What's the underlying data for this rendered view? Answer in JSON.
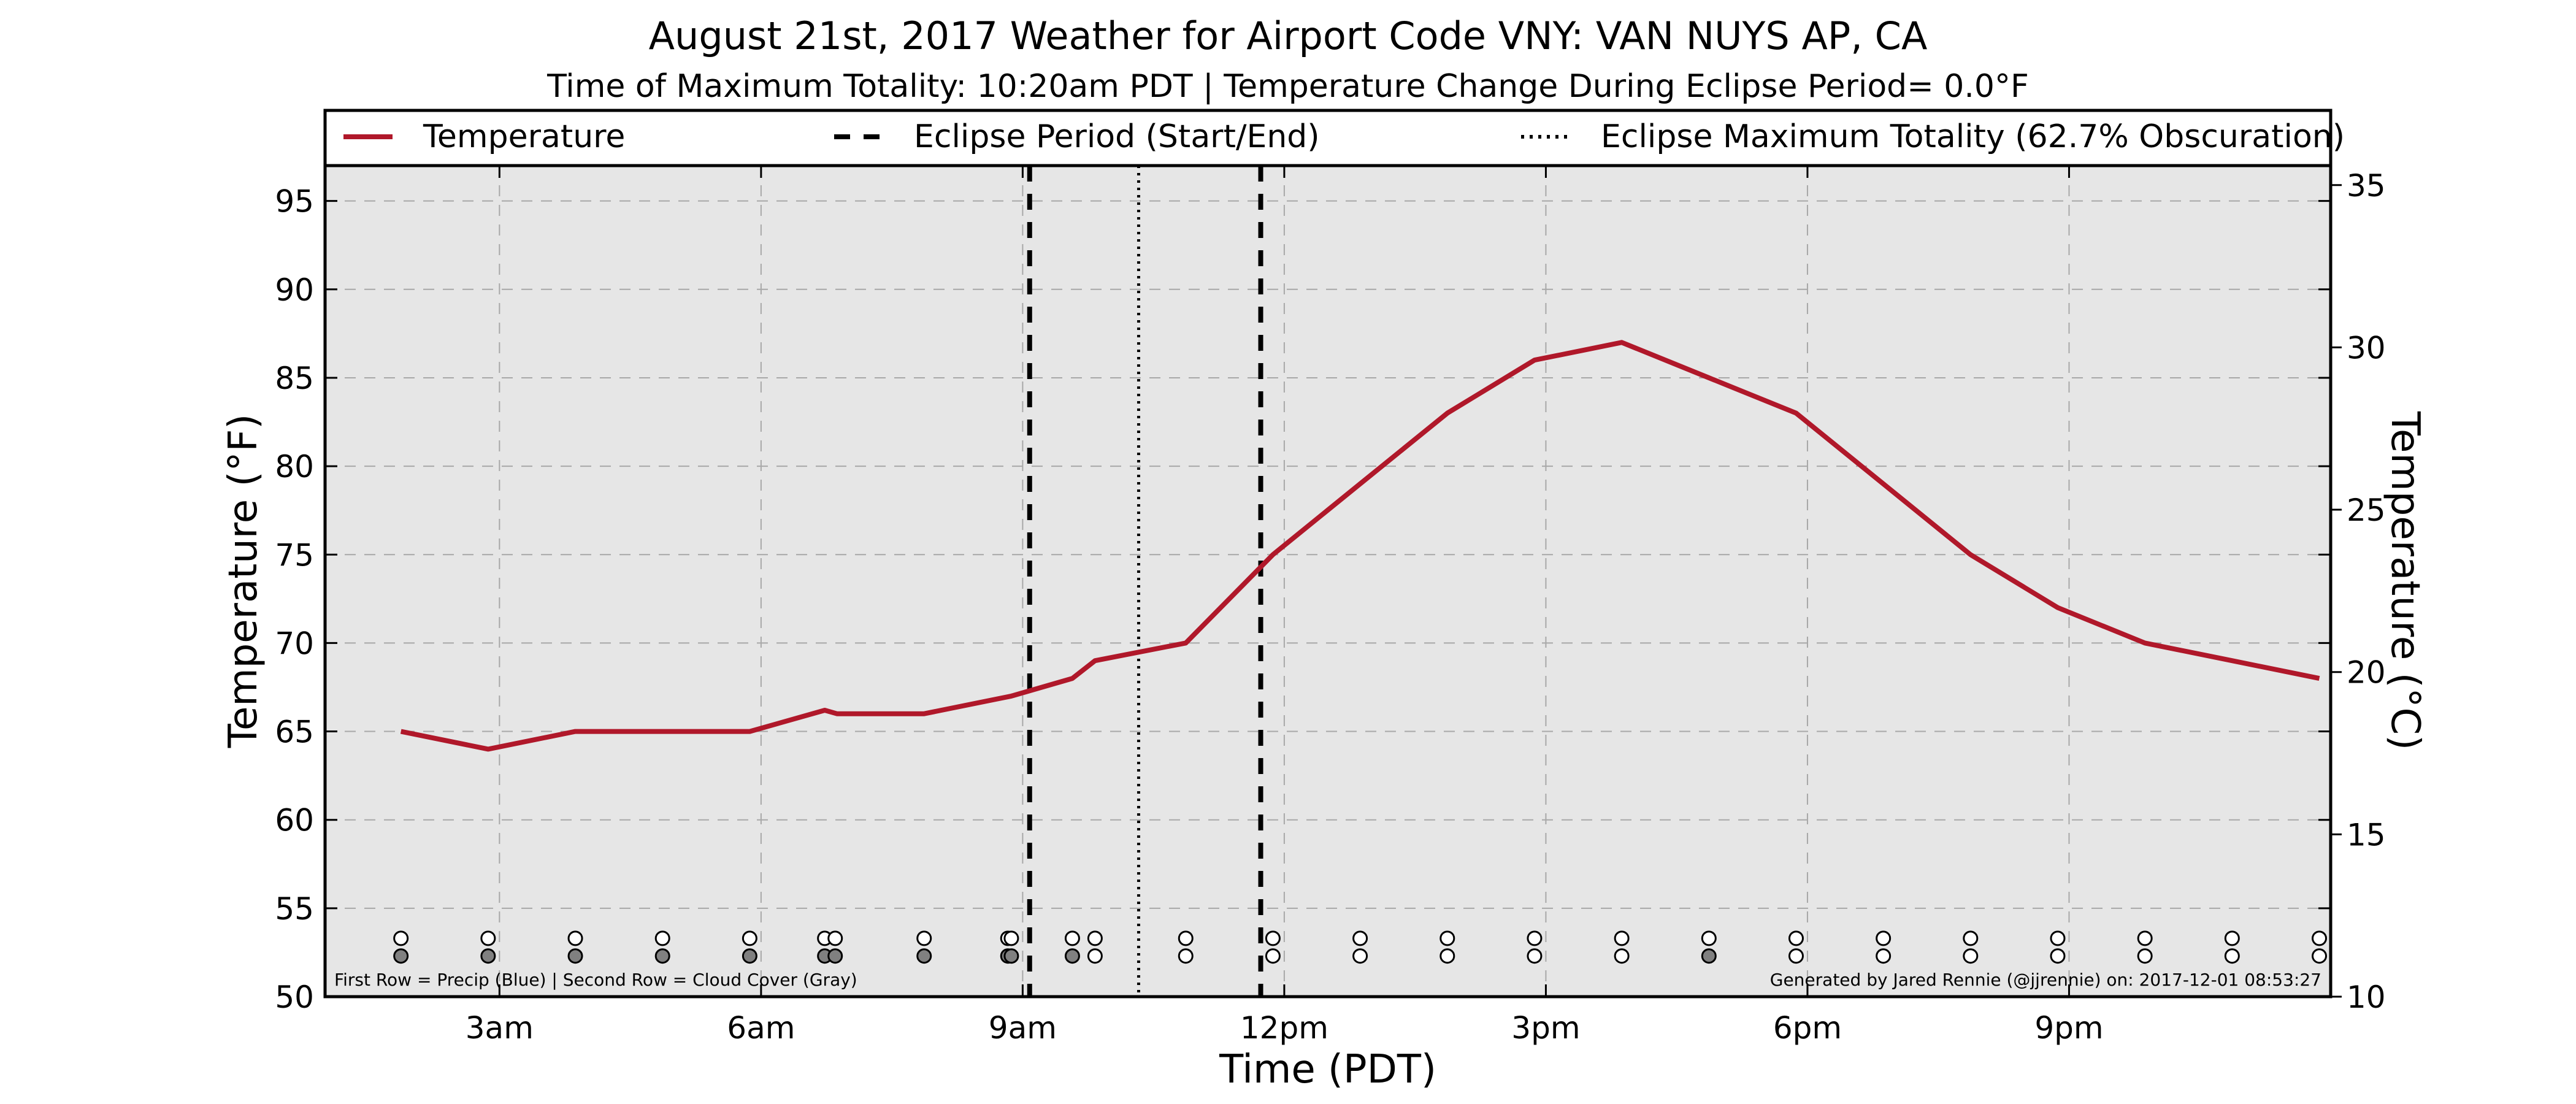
{
  "chart_data": {
    "type": "line",
    "title": "August 21st, 2017 Weather for Airport Code VNY: VAN NUYS AP, CA",
    "subtitle": "Time of Maximum Totality: 10:20am PDT | Temperature Change During Eclipse Period= 0.0°F",
    "xlabel": "Time (PDT)",
    "ylabel": "Temperature (°F)",
    "ylabel_right": "Temperature (°C)",
    "xlim": [
      1.0,
      24.0
    ],
    "ylim": [
      50,
      97
    ],
    "ylim_right": [
      10,
      35.6
    ],
    "x_ticks": [
      3,
      6,
      9,
      12,
      15,
      18,
      21
    ],
    "x_tick_labels": [
      "3am",
      "6am",
      "9am",
      "12pm",
      "3pm",
      "6pm",
      "9pm"
    ],
    "y_ticks": [
      50,
      55,
      60,
      65,
      70,
      75,
      80,
      85,
      90,
      95
    ],
    "y_tick_labels": [
      "50",
      "55",
      "60",
      "65",
      "70",
      "75",
      "80",
      "85",
      "90",
      "95"
    ],
    "y_right_ticks": [
      10,
      15,
      20,
      25,
      30,
      35
    ],
    "y_right_tick_labels": [
      "10",
      "15",
      "20",
      "25",
      "30",
      "35"
    ],
    "grid": true,
    "legend_position": "top (above plot, full width)",
    "legend": [
      {
        "label": "Temperature",
        "style": "solid",
        "color": "#b0182a"
      },
      {
        "label": "Eclipse Period (Start/End)",
        "style": "dashed",
        "color": "#000000"
      },
      {
        "label": "Eclipse Maximum Totality (62.7% Obscuration)",
        "style": "dotted",
        "color": "#000000"
      }
    ],
    "series": [
      {
        "name": "Temperature",
        "color": "#b0182a",
        "x": [
          1.87,
          2.87,
          3.87,
          4.87,
          5.87,
          6.73,
          6.87,
          7.87,
          8.87,
          9.57,
          9.83,
          10.87,
          11.87,
          12.87,
          13.87,
          14.87,
          15.87,
          16.87,
          17.87,
          18.87,
          19.87,
          20.87,
          21.87,
          22.87,
          23.87
        ],
        "y": [
          65,
          64,
          65,
          65,
          65,
          66.2,
          66,
          66,
          67,
          68,
          69,
          70,
          75,
          79,
          83,
          86,
          87,
          85,
          83,
          79,
          75,
          72,
          70,
          69,
          68
        ]
      }
    ],
    "eclipse_start": 9.08,
    "eclipse_end": 11.73,
    "eclipse_max": 10.33,
    "obs_times": [
      1.87,
      2.87,
      3.87,
      4.87,
      5.87,
      6.73,
      6.85,
      7.87,
      8.83,
      8.87,
      9.57,
      9.83,
      10.87,
      11.87,
      12.87,
      13.87,
      14.87,
      15.87,
      16.87,
      17.87,
      18.87,
      19.87,
      20.87,
      21.87,
      22.87,
      23.87
    ],
    "precip_row": [
      0,
      0,
      0,
      0,
      0,
      0,
      0,
      0,
      0,
      0,
      0,
      0,
      0,
      0,
      0,
      0,
      0,
      0,
      0,
      0,
      0,
      0,
      0,
      0,
      0,
      0
    ],
    "cloud_row": [
      1,
      1,
      1,
      1,
      1,
      1,
      1,
      1,
      1,
      1,
      1,
      0,
      0,
      0,
      0,
      0,
      0,
      0,
      1,
      0,
      0,
      0,
      0,
      0,
      0,
      0
    ],
    "colors": {
      "temperature": "#b0182a",
      "plot_background": "#e6e6e6",
      "cloud_fill": "#808080",
      "precip_fill": "#ffffff"
    },
    "footnote_left": "First Row = Precip (Blue) | Second Row = Cloud Cover (Gray)",
    "footnote_right": "Generated by Jared Rennie (@jjrennie) on: 2017-12-01 08:53:27"
  }
}
